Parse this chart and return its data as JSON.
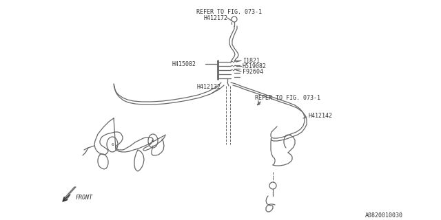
{
  "bg_color": "#ffffff",
  "line_color": "#666666",
  "text_color": "#333333",
  "title_bottom": "A0820010030",
  "labels": {
    "refer1": "REFER TO FIG. 073-1",
    "h412172": "H412172",
    "h415082": "H415082",
    "i1821": "I1821",
    "h519082": "H519082",
    "f92604": "F92604",
    "h412132": "H412132",
    "refer2": "REFER TO FIG. 073-1",
    "h412142": "H412142",
    "front": "FRONT"
  },
  "font_size": 6.0
}
